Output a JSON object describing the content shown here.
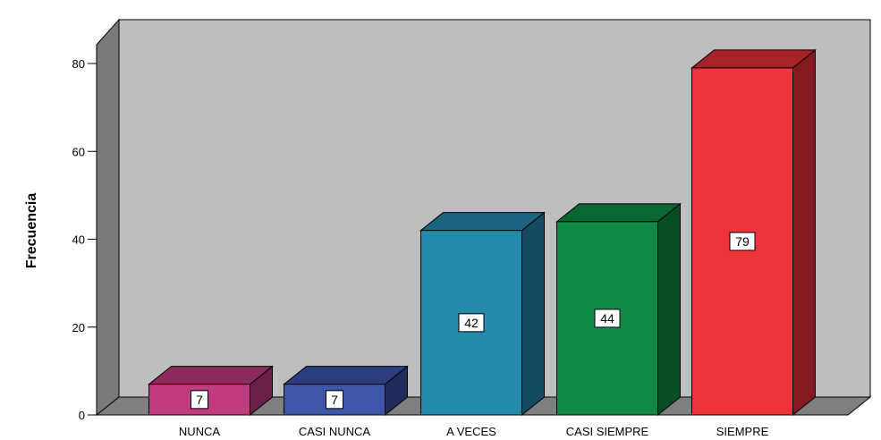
{
  "chart_data": {
    "type": "bar",
    "categories": [
      "NUNCA",
      "CASI NUNCA",
      "A VECES",
      "CASI SIEMPRE",
      "SIEMPRE"
    ],
    "values": [
      7,
      7,
      42,
      44,
      79
    ],
    "data_labels": [
      "7",
      "7",
      "42",
      "44",
      "79"
    ],
    "title": "",
    "xlabel": "",
    "ylabel": "Frecuencia",
    "ylim": [
      0,
      80
    ],
    "yticks": [
      "0",
      "20",
      "40",
      "60",
      "80"
    ],
    "grid": false,
    "legend": "none",
    "style": "3d",
    "colors": {
      "bars": [
        "#bd3b7e",
        "#3d56a9",
        "#268aab",
        "#0f8b47",
        "#ef333a"
      ],
      "bar_tops": [
        "#8a2a5d",
        "#2c3e7f",
        "#1b6580",
        "#0a6534",
        "#a72227"
      ],
      "bar_sides": [
        "#6a1f47",
        "#1f2c5c",
        "#144b60",
        "#064d27",
        "#851a1e"
      ],
      "wall": "#bebebe",
      "left_wall": "#7a7a7a",
      "floor": "#7f7f7f"
    }
  }
}
